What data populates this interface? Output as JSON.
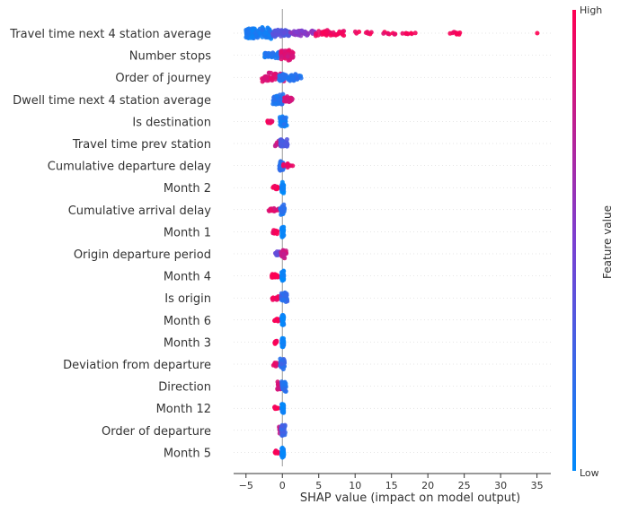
{
  "chart_data": {
    "type": "scatter",
    "subtype": "shap-beeswarm",
    "xlabel": "SHAP value (impact on model output)",
    "xlim": [
      -6.7,
      36.9
    ],
    "xticks": [
      -5,
      0,
      5,
      10,
      15,
      20,
      25,
      30,
      35
    ],
    "colorbar": {
      "label": "Feature value",
      "high_label": "High",
      "low_label": "Low",
      "low_color": "#008afb",
      "mid_color": "#7b3fd1",
      "high_color": "#ff0052"
    },
    "features": [
      {
        "name": "Travel time next 4 station average",
        "clusters": [
          {
            "lo": -5.0,
            "hi": -1.5,
            "n": 140,
            "c": 0.08,
            "spread": 1.0
          },
          {
            "lo": -1.5,
            "hi": 1.0,
            "n": 60,
            "c": 0.35,
            "spread": 0.7
          },
          {
            "lo": 1.0,
            "hi": 4.5,
            "n": 45,
            "c": 0.55,
            "spread": 0.55
          },
          {
            "lo": 4.5,
            "hi": 8.5,
            "n": 45,
            "c": 0.92,
            "spread": 0.5
          },
          {
            "lo": 9.5,
            "hi": 18.5,
            "n": 24,
            "c": 0.95,
            "spread": 0.35
          },
          {
            "lo": 22.5,
            "hi": 24.5,
            "n": 9,
            "c": 0.97,
            "spread": 0.35
          },
          {
            "lo": 34.9,
            "hi": 35.1,
            "n": 1,
            "c": 1.0,
            "spread": 0.0
          }
        ]
      },
      {
        "name": "Number stops",
        "clusters": [
          {
            "lo": -2.5,
            "hi": -0.2,
            "n": 50,
            "c": 0.12,
            "spread": 0.5
          },
          {
            "lo": -0.2,
            "hi": 1.5,
            "n": 60,
            "c": 0.85,
            "spread": 0.9
          }
        ]
      },
      {
        "name": "Order of journey",
        "clusters": [
          {
            "lo": -2.8,
            "hi": 0.3,
            "n": 70,
            "c": 0.85,
            "spread": 0.75
          },
          {
            "lo": -0.5,
            "hi": 2.6,
            "n": 60,
            "c": 0.15,
            "spread": 0.7
          }
        ]
      },
      {
        "name": "Dwell time next 4 station average",
        "clusters": [
          {
            "lo": -1.3,
            "hi": 0.2,
            "n": 55,
            "c": 0.15,
            "spread": 0.9
          },
          {
            "lo": 0.2,
            "hi": 1.5,
            "n": 25,
            "c": 0.85,
            "spread": 0.5
          }
        ]
      },
      {
        "name": "Is destination",
        "clusters": [
          {
            "lo": -2.1,
            "hi": -1.4,
            "n": 10,
            "c": 0.95,
            "spread": 0.35
          },
          {
            "lo": -0.4,
            "hi": 0.6,
            "n": 35,
            "c": 0.1,
            "spread": 0.9
          }
        ]
      },
      {
        "name": "Travel time prev station",
        "clusters": [
          {
            "lo": -1.0,
            "hi": 0.0,
            "n": 15,
            "c": 0.8,
            "spread": 0.45
          },
          {
            "lo": -0.3,
            "hi": 0.7,
            "n": 40,
            "c": 0.3,
            "spread": 0.85
          }
        ]
      },
      {
        "name": "Cumulative departure delay",
        "clusters": [
          {
            "lo": -0.4,
            "hi": 0.2,
            "n": 50,
            "c": 0.15,
            "spread": 0.9
          },
          {
            "lo": 0.1,
            "hi": 1.5,
            "n": 15,
            "c": 0.9,
            "spread": 0.4
          }
        ]
      },
      {
        "name": "Month 2",
        "clusters": [
          {
            "lo": -1.3,
            "hi": -0.6,
            "n": 14,
            "c": 0.97,
            "spread": 0.35
          },
          {
            "lo": -0.1,
            "hi": 0.2,
            "n": 40,
            "c": 0.04,
            "spread": 0.9
          }
        ]
      },
      {
        "name": "Cumulative arrival delay",
        "clusters": [
          {
            "lo": -1.9,
            "hi": -0.3,
            "n": 20,
            "c": 0.88,
            "spread": 0.35
          },
          {
            "lo": -0.3,
            "hi": 0.3,
            "n": 40,
            "c": 0.15,
            "spread": 0.9
          }
        ]
      },
      {
        "name": "Month 1",
        "clusters": [
          {
            "lo": -1.3,
            "hi": -0.6,
            "n": 14,
            "c": 0.97,
            "spread": 0.35
          },
          {
            "lo": -0.1,
            "hi": 0.2,
            "n": 40,
            "c": 0.04,
            "spread": 0.9
          }
        ]
      },
      {
        "name": "Origin departure period",
        "clusters": [
          {
            "lo": -1.0,
            "hi": 0.1,
            "n": 25,
            "c": 0.4,
            "spread": 0.4
          },
          {
            "lo": -0.2,
            "hi": 0.6,
            "n": 20,
            "c": 0.8,
            "spread": 0.9
          }
        ]
      },
      {
        "name": "Month 4",
        "clusters": [
          {
            "lo": -1.5,
            "hi": -0.6,
            "n": 16,
            "c": 0.97,
            "spread": 0.35
          },
          {
            "lo": -0.1,
            "hi": 0.2,
            "n": 40,
            "c": 0.04,
            "spread": 0.9
          }
        ]
      },
      {
        "name": "Is origin",
        "clusters": [
          {
            "lo": -1.4,
            "hi": -0.5,
            "n": 14,
            "c": 0.95,
            "spread": 0.35
          },
          {
            "lo": -0.2,
            "hi": 0.7,
            "n": 40,
            "c": 0.2,
            "spread": 0.9
          }
        ]
      },
      {
        "name": "Month 6",
        "clusters": [
          {
            "lo": -1.1,
            "hi": -0.5,
            "n": 12,
            "c": 0.97,
            "spread": 0.35
          },
          {
            "lo": -0.1,
            "hi": 0.2,
            "n": 40,
            "c": 0.04,
            "spread": 0.9
          }
        ]
      },
      {
        "name": "Month 3",
        "clusters": [
          {
            "lo": -1.1,
            "hi": -0.5,
            "n": 12,
            "c": 0.97,
            "spread": 0.35
          },
          {
            "lo": -0.1,
            "hi": 0.2,
            "n": 40,
            "c": 0.04,
            "spread": 0.9
          }
        ]
      },
      {
        "name": "Deviation from departure",
        "clusters": [
          {
            "lo": -1.3,
            "hi": -0.3,
            "n": 15,
            "c": 0.9,
            "spread": 0.35
          },
          {
            "lo": -0.3,
            "hi": 0.3,
            "n": 40,
            "c": 0.2,
            "spread": 0.9
          }
        ]
      },
      {
        "name": "Direction",
        "clusters": [
          {
            "lo": -0.7,
            "hi": 0.0,
            "n": 25,
            "c": 0.85,
            "spread": 0.8
          },
          {
            "lo": -0.1,
            "hi": 0.5,
            "n": 30,
            "c": 0.15,
            "spread": 0.9
          }
        ]
      },
      {
        "name": "Month 12",
        "clusters": [
          {
            "lo": -1.1,
            "hi": -0.5,
            "n": 12,
            "c": 0.97,
            "spread": 0.35
          },
          {
            "lo": -0.1,
            "hi": 0.2,
            "n": 40,
            "c": 0.04,
            "spread": 0.9
          }
        ]
      },
      {
        "name": "Order of departure",
        "clusters": [
          {
            "lo": -0.6,
            "hi": 0.2,
            "n": 20,
            "c": 0.8,
            "spread": 0.6
          },
          {
            "lo": -0.2,
            "hi": 0.4,
            "n": 30,
            "c": 0.25,
            "spread": 0.9
          }
        ]
      },
      {
        "name": "Month 5",
        "clusters": [
          {
            "lo": -1.1,
            "hi": -0.5,
            "n": 12,
            "c": 0.97,
            "spread": 0.35
          },
          {
            "lo": -0.1,
            "hi": 0.2,
            "n": 40,
            "c": 0.04,
            "spread": 0.9
          }
        ]
      }
    ]
  }
}
